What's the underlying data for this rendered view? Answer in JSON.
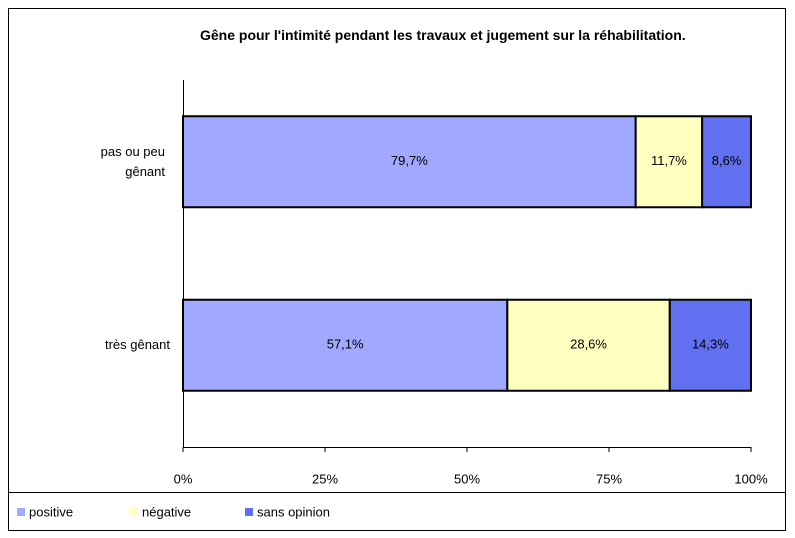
{
  "chart_data": {
    "type": "bar",
    "orientation": "horizontal",
    "stacked": true,
    "title": "Gêne pour l'intimité pendant les travaux et jugement sur la réhabilitation.",
    "categories": [
      "pas ou peu gênant",
      "très gênant"
    ],
    "series": [
      {
        "name": "positive",
        "color": "#a0a8ff",
        "values": [
          79.7,
          57.1
        ],
        "value_labels": [
          "79,7%",
          "57,1%"
        ]
      },
      {
        "name": "négative",
        "color": "#ffffc0",
        "values": [
          11.7,
          28.6
        ],
        "value_labels": [
          "11,7%",
          "28,6%"
        ]
      },
      {
        "name": "sans opinion",
        "color": "#6070f0",
        "values": [
          8.6,
          14.3
        ],
        "value_labels": [
          "8,6%",
          "14,3%"
        ]
      }
    ],
    "xlim": [
      0,
      100
    ],
    "xticks": [
      {
        "value": 0,
        "label": "0%"
      },
      {
        "value": 25,
        "label": "25%"
      },
      {
        "value": 50,
        "label": "50%"
      },
      {
        "value": 75,
        "label": "75%"
      },
      {
        "value": 100,
        "label": "100%"
      }
    ],
    "legend": "bottom"
  }
}
